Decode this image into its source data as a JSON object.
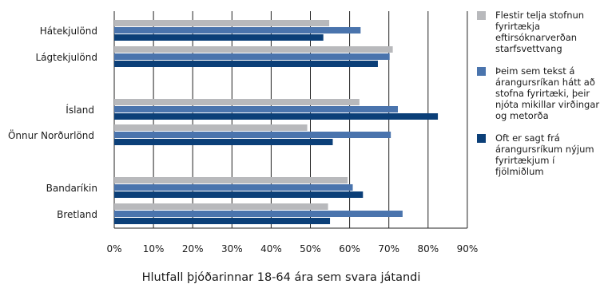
{
  "chart_data": {
    "type": "bar",
    "orientation": "horizontal",
    "categories": [
      "Hátekjulönd",
      "Lágtekjulönd",
      "Ísland",
      "Önnur Norðurlönd",
      "Bandaríkin",
      "Bretland"
    ],
    "series": [
      {
        "name": "Flestir telja stofnun fyrirtækja eftirsóknarverðan starfsvettvang",
        "color": "#b8b9bc",
        "values": [
          54.8,
          71.0,
          62.5,
          49.2,
          59.5,
          54.5
        ]
      },
      {
        "name": "Þeim sem tekst á árangursríkan hátt að stofna fyrirtæki, þeir njóta mikillar virðingar og metorða",
        "color": "#4a74ad",
        "values": [
          62.8,
          70.2,
          72.3,
          70.5,
          60.8,
          73.5
        ]
      },
      {
        "name": "Oft er sagt frá árangursríkum nýjum fyrirtækjum í fjölmiðlum",
        "color": "#0b3f78",
        "values": [
          53.3,
          67.2,
          82.5,
          55.7,
          63.4,
          55.0
        ]
      }
    ],
    "xlim": [
      0,
      90
    ],
    "x_ticks": [
      "0%",
      "10%",
      "20%",
      "30%",
      "40%",
      "50%",
      "60%",
      "70%",
      "80%",
      "90%"
    ],
    "xlabel": "Hlutfall þjóðarinnar 18-64 ára sem svara játandi",
    "grid": true,
    "legend_position": "right"
  }
}
